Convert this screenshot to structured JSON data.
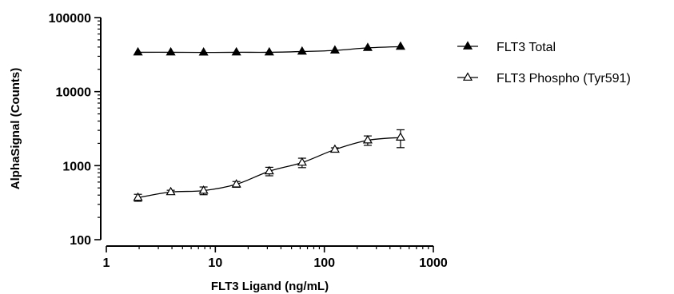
{
  "chart_data": {
    "type": "scatter",
    "title": "",
    "xlabel": "FLT3 Ligand (ng/mL)",
    "ylabel": "AlphaSignal (Counts)",
    "xscale": "log",
    "yscale": "log",
    "xlim": [
      1,
      1000
    ],
    "ylim": [
      100,
      100000
    ],
    "x_ticks": [
      1,
      10,
      100,
      1000
    ],
    "x_tick_labels": [
      "1",
      "10",
      "100",
      "1000"
    ],
    "y_ticks": [
      100,
      1000,
      10000,
      100000
    ],
    "y_tick_labels": [
      "100",
      "1000",
      "10000",
      "100000"
    ],
    "grid": false,
    "legend_position": "right",
    "series": [
      {
        "name": "FLT3 Total",
        "marker": "filled-triangle",
        "color": "#000000",
        "x": [
          1.95,
          3.9,
          7.8,
          15.6,
          31.25,
          62.5,
          125,
          250,
          500
        ],
        "y": [
          34000,
          34000,
          33800,
          34000,
          34000,
          34800,
          36000,
          39000,
          40500
        ],
        "err": [
          0,
          0,
          0,
          0,
          0,
          0,
          0,
          0,
          0
        ]
      },
      {
        "name": "FLT3 Phospho (Tyr591)",
        "marker": "open-triangle",
        "color": "#000000",
        "x": [
          1.95,
          3.9,
          7.8,
          15.6,
          31.25,
          62.5,
          125,
          250,
          500
        ],
        "y": [
          370,
          440,
          460,
          560,
          840,
          1100,
          1650,
          2200,
          2400
        ],
        "err": [
          40,
          25,
          55,
          50,
          110,
          160,
          90,
          320,
          650
        ]
      }
    ]
  }
}
